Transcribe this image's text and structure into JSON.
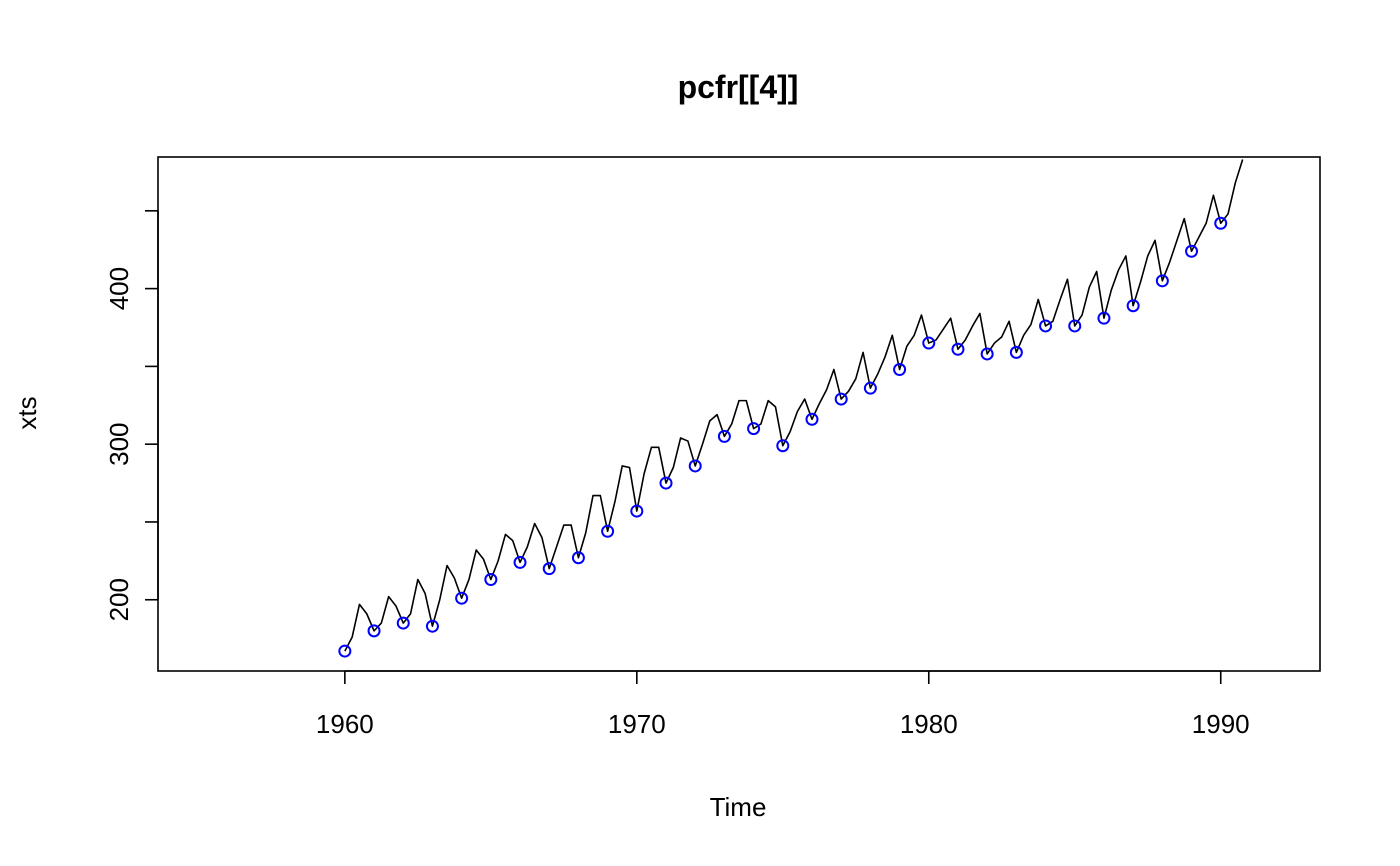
{
  "chart_data": {
    "type": "line",
    "title": "pcfr[[4]]",
    "xlabel": "Time",
    "ylabel": "xts",
    "xlim": [
      1953.6,
      1993.4
    ],
    "ylim": [
      154.2,
      484.6
    ],
    "x_ticks": [
      1960,
      1970,
      1980,
      1990
    ],
    "x_tick_labels": [
      "1960",
      "1970",
      "1980",
      "1990"
    ],
    "y_ticks": [
      150,
      200,
      250,
      300,
      350,
      400,
      450
    ],
    "y_tick_labels": [
      "",
      "200",
      "",
      "300",
      "",
      "400",
      ""
    ],
    "grid": false,
    "colors": {
      "line": "#000000",
      "points": "#0000ff",
      "axes": "#000000"
    },
    "series": [
      {
        "start": 1960,
        "frequency": 4,
        "values": [
          167,
          176,
          197,
          191,
          180,
          185,
          202,
          196,
          185,
          191,
          213,
          204,
          183,
          200,
          222,
          214,
          201,
          213,
          232,
          226,
          213,
          225,
          242,
          238,
          224,
          234,
          249,
          240,
          220,
          234,
          248,
          248,
          227,
          243,
          267,
          267,
          244,
          263,
          286,
          285,
          257,
          281,
          298,
          298,
          275,
          285,
          304,
          302,
          286,
          300,
          315,
          319,
          305,
          313,
          328,
          328,
          310,
          313,
          328,
          324,
          299,
          308,
          321,
          329,
          316,
          326,
          335,
          348,
          329,
          334,
          342,
          359,
          336,
          345,
          356,
          370,
          348,
          363,
          370,
          383,
          365,
          367,
          374,
          381,
          361,
          367,
          376,
          384,
          358,
          365,
          369,
          379,
          359,
          370,
          377,
          393,
          376,
          379,
          393,
          406,
          376,
          383,
          401,
          411,
          381,
          399,
          412,
          421,
          389,
          404,
          421,
          431,
          405,
          417,
          431,
          445,
          424,
          433,
          442,
          460,
          442,
          448,
          468,
          483
        ]
      },
      {
        "type": "points",
        "x": [
          1960,
          1961,
          1962,
          1963,
          1964,
          1965,
          1966,
          1967,
          1968,
          1969,
          1970,
          1971,
          1972,
          1973,
          1974,
          1975,
          1976,
          1977,
          1978,
          1979,
          1980,
          1981,
          1982,
          1983,
          1984,
          1985,
          1986,
          1987,
          1988,
          1989,
          1990
        ],
        "values": [
          167,
          180,
          185,
          183,
          201,
          213,
          224,
          220,
          227,
          244,
          257,
          275,
          286,
          305,
          310,
          299,
          316,
          329,
          336,
          348,
          365,
          361,
          358,
          359,
          376,
          376,
          381,
          389,
          405,
          424,
          442
        ]
      }
    ]
  }
}
